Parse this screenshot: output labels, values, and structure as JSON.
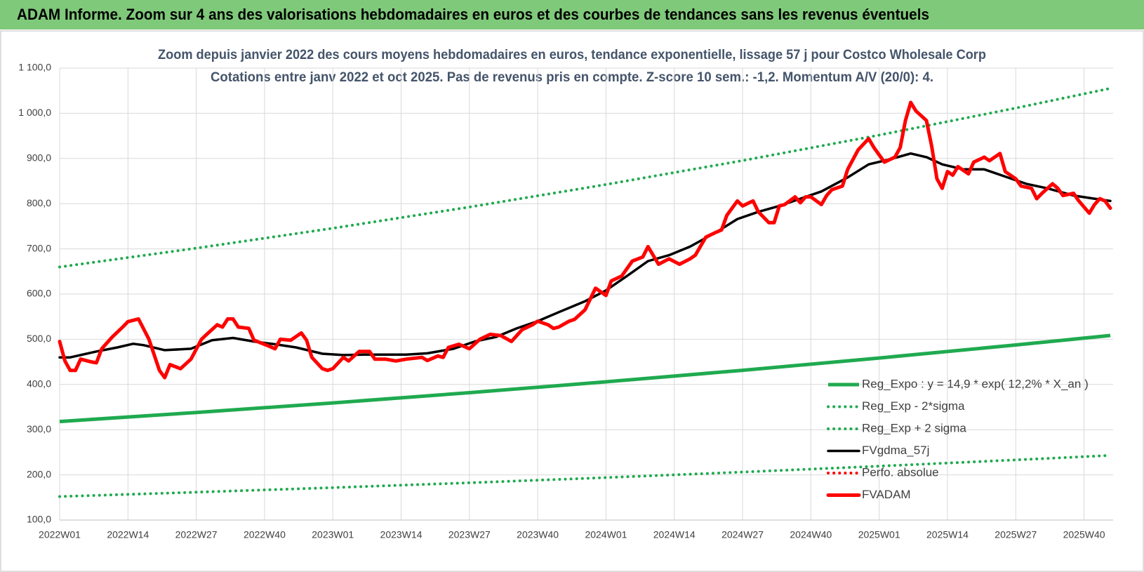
{
  "header": {
    "title": "ADAM Informe. Zoom sur 4 ans des valorisations hebdomadaires en euros et des courbes de tendances sans les revenus éventuels"
  },
  "chart_data": {
    "type": "line",
    "title": "Zoom depuis janvier 2022 des cours moyens hebdomadaires en euros, tendance exponentielle, lissage 57 j pour Costco Wholesale Corp",
    "subtitle": "Cotations entre janv 2022 et oct 2025. Pas de revenus pris en compte. Z-score 10 sem.: -1,2.  Momentum A/V (20/0): 4.",
    "xlim": [
      0,
      200
    ],
    "xticks": [
      {
        "value": 0,
        "label": "2022W01"
      },
      {
        "value": 13,
        "label": "2022W14"
      },
      {
        "value": 26,
        "label": "2022W27"
      },
      {
        "value": 39,
        "label": "2022W40"
      },
      {
        "value": 52,
        "label": "2023W01"
      },
      {
        "value": 65,
        "label": "2023W14"
      },
      {
        "value": 78,
        "label": "2023W27"
      },
      {
        "value": 91,
        "label": "2023W40"
      },
      {
        "value": 104,
        "label": "2024W01"
      },
      {
        "value": 117,
        "label": "2024W14"
      },
      {
        "value": 130,
        "label": "2024W27"
      },
      {
        "value": 143,
        "label": "2024W40"
      },
      {
        "value": 156,
        "label": "2025W01"
      },
      {
        "value": 169,
        "label": "2025W14"
      },
      {
        "value": 182,
        "label": "2025W27"
      },
      {
        "value": 195,
        "label": "2025W40"
      }
    ],
    "ylim": [
      100,
      1100
    ],
    "yticks": [
      {
        "value": 100,
        "label": "100,0"
      },
      {
        "value": 200,
        "label": "200,0"
      },
      {
        "value": 300,
        "label": "300,0"
      },
      {
        "value": 400,
        "label": "400,0"
      },
      {
        "value": 500,
        "label": "500,0"
      },
      {
        "value": 600,
        "label": "600,0"
      },
      {
        "value": 700,
        "label": "700,0"
      },
      {
        "value": 800,
        "label": "800,0"
      },
      {
        "value": 900,
        "label": "900,0"
      },
      {
        "value": 1000,
        "label": "1 000,0"
      },
      {
        "value": 1100,
        "label": "1 100,0"
      }
    ],
    "grid": true,
    "legend": "right",
    "series": [
      {
        "name": "Reg_Expo : y = 14,9 * exp( 12,2% *  X_an )",
        "color": "#1faa4f",
        "style": "solid",
        "x": [
          0,
          26,
          52,
          78,
          104,
          130,
          156,
          182,
          200
        ],
        "values": [
          318,
          338,
          359.2,
          381.9,
          405.9,
          431.4,
          458.5,
          487.4,
          508.4
        ]
      },
      {
        "name": "Reg_Exp - 2*sigma",
        "color": "#1faa4f",
        "style": "dotted",
        "x": [
          0,
          26,
          52,
          78,
          104,
          130,
          156,
          182,
          200
        ],
        "values": [
          152,
          161.6,
          171.7,
          182.5,
          194,
          206.2,
          219.2,
          233,
          243
        ]
      },
      {
        "name": "Reg_Exp + 2 sigma",
        "color": "#1faa4f",
        "style": "dotted",
        "x": [
          0,
          26,
          52,
          78,
          104,
          130,
          156,
          182,
          200
        ],
        "values": [
          660,
          701.5,
          745.6,
          792.5,
          842.4,
          895.4,
          951.7,
          1011.5,
          1055.2
        ]
      },
      {
        "name": "FVgdma_57j",
        "color": "#000000",
        "style": "solid",
        "x": [
          0,
          2,
          7,
          11,
          14,
          16,
          20,
          25,
          29,
          33,
          37,
          41,
          45,
          50,
          54,
          58,
          62,
          66,
          70,
          75,
          79,
          83,
          87,
          91,
          95,
          100,
          104,
          108,
          112,
          116,
          120,
          125,
          129,
          133,
          137,
          141,
          145,
          150,
          154,
          158,
          162,
          165,
          168,
          172,
          176,
          180,
          184,
          188,
          193,
          197,
          200
        ],
        "values": [
          460,
          460,
          473,
          482,
          490,
          487,
          476,
          479,
          498,
          503,
          495,
          489,
          482,
          468,
          465,
          466,
          466,
          466,
          469,
          479,
          495,
          505,
          524,
          540,
          560,
          584,
          608,
          640,
          673,
          686,
          705,
          737,
          766,
          782,
          795,
          811,
          827,
          858,
          887,
          898,
          911,
          903,
          887,
          876,
          876,
          860,
          844,
          834,
          818,
          811,
          806
        ]
      },
      {
        "name": "Perfo. absolue",
        "color": "#ff0000",
        "style": "dotted",
        "x": [],
        "values": []
      },
      {
        "name": "FVADAM",
        "color": "#ff0000",
        "style": "thick",
        "x": [
          0,
          1,
          2,
          3,
          4,
          6,
          7,
          8,
          10,
          12,
          13,
          15,
          17,
          19,
          20,
          21,
          23,
          25,
          27,
          28,
          30,
          31,
          32,
          33,
          34,
          36,
          37,
          40,
          41,
          42,
          44,
          46,
          47,
          48,
          50,
          51,
          52,
          54,
          55,
          57,
          59,
          60,
          62,
          64,
          66,
          69,
          70,
          72,
          73,
          74,
          76,
          78,
          80,
          82,
          84,
          86,
          88,
          90,
          91,
          93,
          94,
          95,
          97,
          98,
          100,
          102,
          104,
          105,
          107,
          109,
          111,
          112,
          114,
          116,
          118,
          120,
          121,
          123,
          125,
          126,
          127,
          129,
          130,
          132,
          133,
          135,
          136,
          137,
          138,
          140,
          141,
          142,
          143,
          145,
          146,
          147,
          149,
          150,
          152,
          154,
          155,
          157,
          159,
          160,
          161,
          162,
          163,
          165,
          166,
          167,
          168,
          169,
          170,
          171,
          173,
          174,
          176,
          177,
          179,
          180,
          182,
          183,
          185,
          186,
          187,
          189,
          190,
          191,
          193,
          194,
          196,
          197,
          198,
          199,
          200
        ],
        "values": [
          495,
          452,
          431,
          431,
          456,
          450,
          448,
          479,
          505,
          527,
          539,
          545,
          500,
          431,
          415,
          444,
          435,
          456,
          500,
          511,
          532,
          527,
          545,
          545,
          527,
          524,
          498,
          484,
          479,
          500,
          498,
          514,
          498,
          460,
          435,
          431,
          435,
          460,
          452,
          473,
          473,
          456,
          456,
          452,
          456,
          460,
          453,
          463,
          460,
          482,
          489,
          479,
          500,
          511,
          508,
          495,
          521,
          532,
          540,
          532,
          524,
          527,
          540,
          544,
          565,
          613,
          597,
          629,
          640,
          673,
          682,
          705,
          666,
          678,
          666,
          678,
          686,
          726,
          737,
          742,
          774,
          806,
          795,
          806,
          782,
          758,
          758,
          795,
          798,
          815,
          802,
          815,
          815,
          798,
          818,
          831,
          839,
          876,
          919,
          944,
          924,
          892,
          903,
          924,
          984,
          1024,
          1005,
          984,
          927,
          855,
          834,
          871,
          863,
          882,
          866,
          892,
          903,
          895,
          911,
          871,
          855,
          839,
          834,
          811,
          823,
          844,
          834,
          818,
          823,
          806,
          779,
          798,
          811,
          806,
          790
        ]
      }
    ]
  }
}
